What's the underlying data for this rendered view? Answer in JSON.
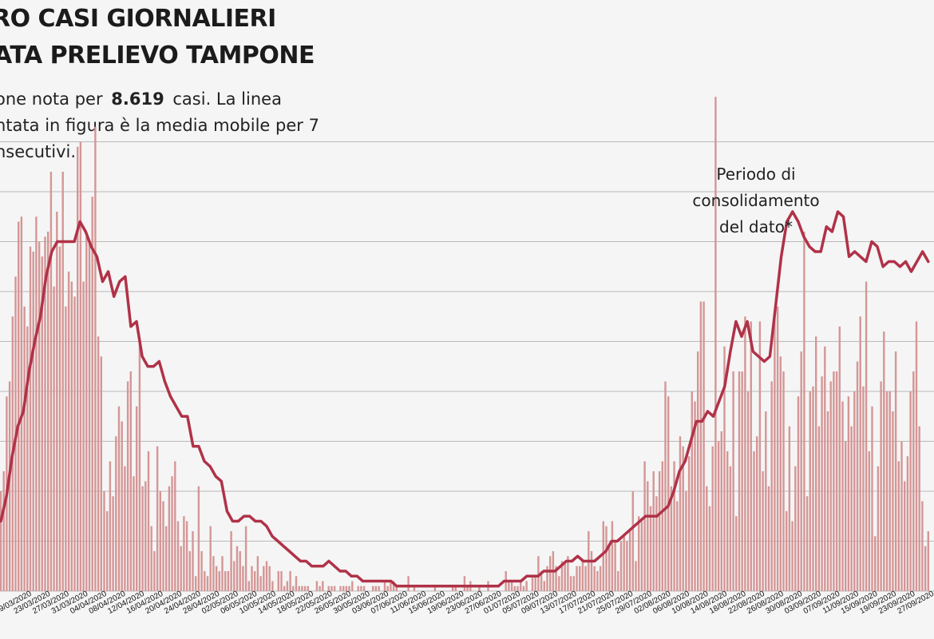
{
  "header": {
    "title_line1": "RO CASI GIORNALIERI",
    "title_line2": "ATA PRELIEVO TAMPONE",
    "subtitle_line1_pre": "one nota per",
    "subtitle_value": "8.619",
    "subtitle_line1_post": "casi. La linea",
    "subtitle_line2": "ntata in figura è la media mobile per 7",
    "subtitle_line3": "nsecutivi."
  },
  "annotation": {
    "line1": "Periodo di",
    "line2": "consolidamento",
    "line3": "del dato*"
  },
  "colors": {
    "bar": "#d59696",
    "line": "#b03248",
    "grid": "#b9b9b9",
    "background": "#f5f5f5"
  },
  "chart_data": {
    "type": "bar",
    "start_date": "2020-03-16",
    "end_date": "2020-09-28",
    "x_tick_labels": [
      "19/03/2020",
      "23/03/2020",
      "27/03/2020",
      "31/03/2020",
      "04/04/2020",
      "08/04/2020",
      "12/04/2020",
      "16/04/2020",
      "20/04/2020",
      "24/04/2020",
      "28/04/2020",
      "02/05/2020",
      "06/05/2020",
      "10/05/2020",
      "14/05/2020",
      "18/05/2020",
      "22/05/2020",
      "26/05/2020",
      "30/05/2020",
      "03/06/2020",
      "07/06/2020",
      "11/06/2020",
      "15/06/2020",
      "19/06/2020",
      "23/06/2020",
      "27/06/2020",
      "01/07/2020",
      "05/07/2020",
      "09/07/2020",
      "13/07/2020",
      "17/07/2020",
      "21/07/2020",
      "25/07/2020",
      "29/07/2020",
      "02/08/2020",
      "06/08/2020",
      "10/08/2020",
      "14/08/2020",
      "18/08/2020",
      "22/08/2020",
      "26/08/2020",
      "30/08/2020",
      "03/09/2020",
      "07/09/2020",
      "11/09/2020",
      "15/09/2020",
      "19/09/2020",
      "23/09/2020",
      "27/09/2020"
    ],
    "y_grid_lines": 9,
    "series": [
      {
        "type": "bar",
        "values": [
          20,
          24,
          39,
          42,
          55,
          63,
          74,
          75,
          57,
          53,
          69,
          68,
          75,
          70,
          67,
          71,
          72,
          84,
          61,
          76,
          69,
          84,
          57,
          64,
          62,
          59,
          89,
          90,
          62,
          71,
          70,
          79,
          93,
          51,
          47,
          20,
          16,
          26,
          19,
          31,
          37,
          34,
          25,
          42,
          44,
          23,
          37,
          50,
          21,
          22,
          28,
          13,
          8,
          29,
          20,
          18,
          13,
          21,
          23,
          26,
          14,
          9,
          15,
          14,
          8,
          12,
          3,
          21,
          8,
          4,
          3,
          13,
          7,
          5,
          4,
          7,
          4,
          4,
          12,
          6,
          9,
          8,
          5,
          13,
          2,
          5,
          4,
          7,
          3,
          5,
          6,
          5,
          2,
          0,
          4,
          4,
          1,
          2,
          4,
          1,
          3,
          1,
          1,
          1,
          1,
          0,
          0,
          2,
          1,
          2,
          0,
          1,
          1,
          1,
          0,
          1,
          1,
          1,
          1,
          2,
          0,
          1,
          1,
          1,
          0,
          0,
          1,
          1,
          1,
          0,
          2,
          1,
          2,
          2,
          1,
          0,
          0,
          0,
          3,
          0,
          1,
          0,
          0,
          0,
          0,
          0,
          0,
          1,
          0,
          0,
          0,
          0,
          0,
          1,
          1,
          0,
          0,
          3,
          1,
          2,
          0,
          0,
          1,
          0,
          0,
          2,
          0,
          0,
          0,
          0,
          0,
          4,
          2,
          2,
          1,
          1,
          2,
          1,
          2,
          0,
          3,
          3,
          7,
          4,
          2,
          5,
          7,
          8,
          5,
          3,
          6,
          6,
          7,
          3,
          3,
          5,
          5,
          6,
          5,
          12,
          8,
          5,
          4,
          5,
          14,
          13,
          9,
          14,
          10,
          4,
          10,
          11,
          10,
          12,
          20,
          6,
          15,
          14,
          26,
          22,
          17,
          24,
          19,
          24,
          26,
          42,
          39,
          21,
          26,
          18,
          31,
          29,
          20,
          27,
          40,
          38,
          48,
          58,
          58,
          21,
          17,
          29,
          99,
          30,
          32,
          49,
          28,
          25,
          44,
          15,
          44,
          44,
          55,
          40,
          54,
          28,
          31,
          54,
          24,
          36,
          21,
          42,
          56,
          57,
          47,
          44,
          16,
          33,
          14,
          25,
          39,
          48,
          72,
          19,
          40,
          41,
          51,
          33,
          43,
          49,
          36,
          42,
          44,
          44,
          53,
          38,
          30,
          39,
          33,
          40,
          46,
          55,
          41,
          62,
          28,
          37,
          11,
          25,
          42,
          52,
          40,
          40,
          36,
          48,
          26,
          30,
          22,
          27,
          40,
          44,
          54,
          33,
          18,
          9,
          12
        ]
      },
      {
        "type": "line",
        "label": "media mobile per 7",
        "values": [
          14,
          19,
          27,
          33,
          36,
          44,
          50,
          55,
          63,
          68,
          70,
          70,
          70,
          70,
          74,
          72,
          69,
          67,
          62,
          64,
          59,
          62,
          63,
          53,
          54,
          47,
          45,
          45,
          46,
          42,
          39,
          37,
          35,
          35,
          29,
          29,
          26,
          25,
          23,
          22,
          16,
          14,
          14,
          15,
          15,
          14,
          14,
          13,
          11,
          10,
          9,
          8,
          7,
          6,
          6,
          5,
          5,
          5,
          6,
          5,
          4,
          4,
          3,
          3,
          2,
          2,
          2,
          2,
          2,
          2,
          1,
          1,
          1,
          1,
          1,
          1,
          1,
          1,
          1,
          1,
          1,
          1,
          1,
          1,
          1,
          1,
          1,
          1,
          1,
          2,
          2,
          2,
          2,
          3,
          3,
          3,
          4,
          4,
          4,
          5,
          6,
          6,
          7,
          6,
          6,
          6,
          7,
          8,
          10,
          10,
          11,
          12,
          13,
          14,
          15,
          15,
          15,
          16,
          17,
          20,
          24,
          26,
          30,
          34,
          34,
          36,
          35,
          38,
          41,
          48,
          54,
          51,
          54,
          48,
          47,
          46,
          47,
          57,
          67,
          74,
          76,
          74,
          71,
          69,
          68,
          68,
          73,
          72,
          76,
          75,
          67,
          68,
          67,
          66,
          70,
          69,
          65,
          66,
          66,
          65,
          66,
          64,
          66,
          68,
          66
        ]
      }
    ]
  }
}
